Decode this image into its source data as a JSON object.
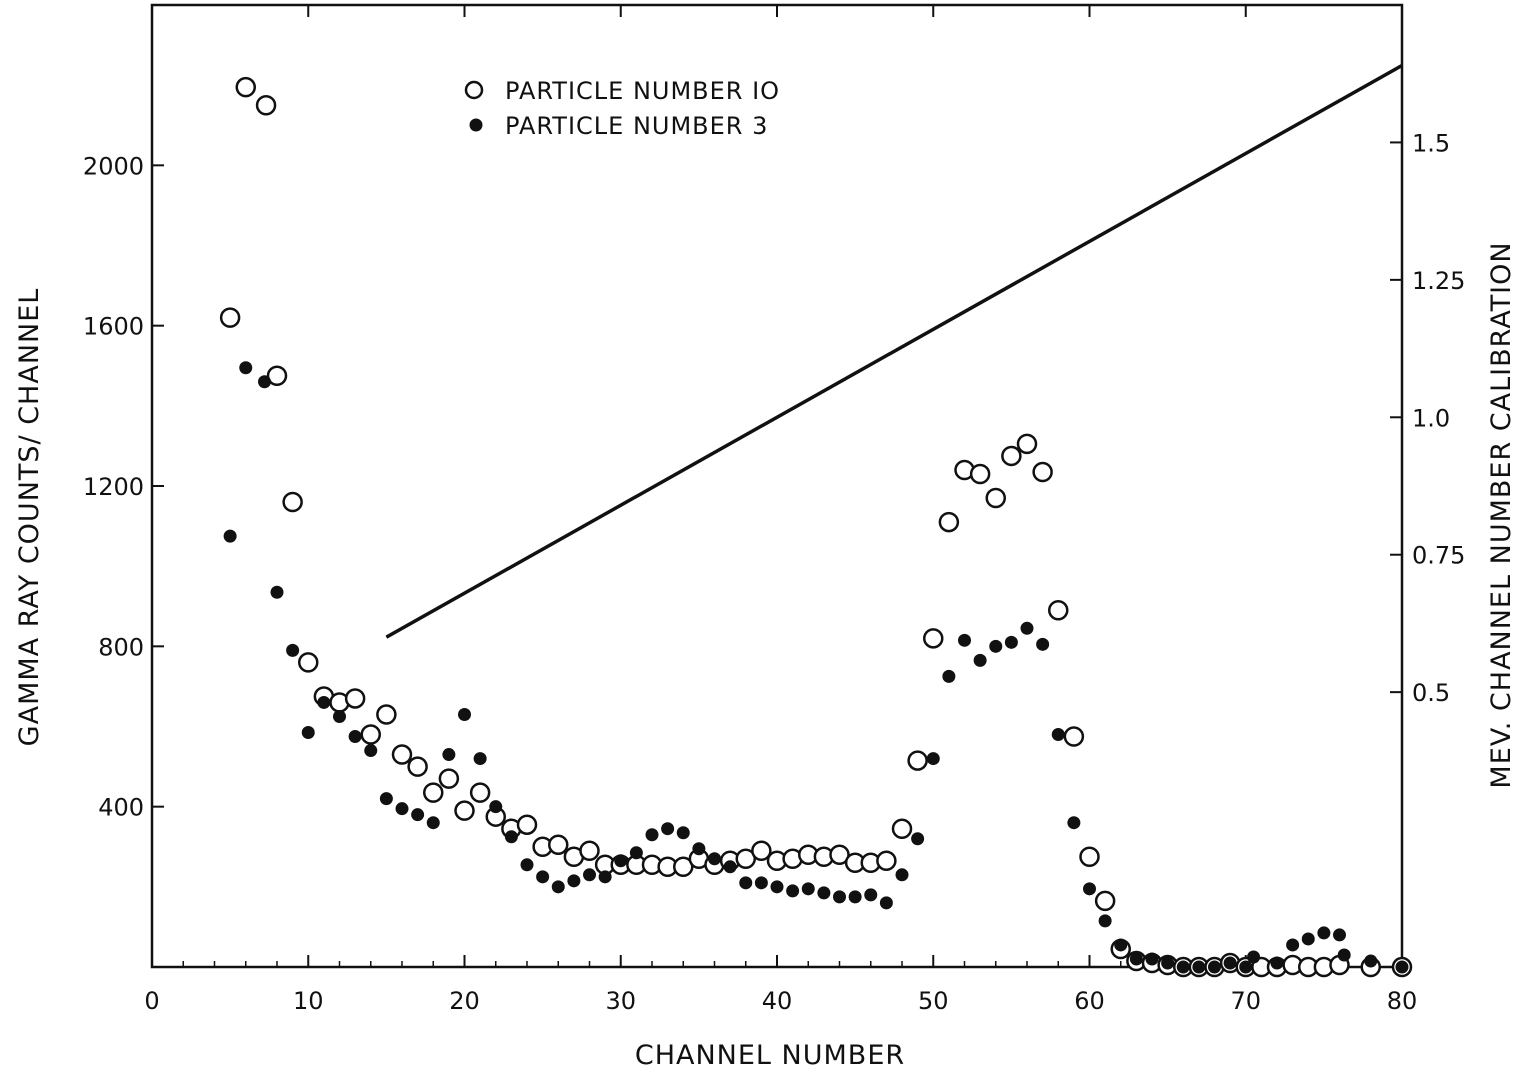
{
  "chart_data": {
    "type": "scatter",
    "xlabel": "CHANNEL NUMBER",
    "ylabel": "GAMMA RAY COUNTS/ CHANNEL",
    "y2label": "MEV. CHANNEL NUMBER CALIBRATION",
    "xlim": [
      0,
      80
    ],
    "ylim": [
      0,
      2400
    ],
    "y2lim": [
      0,
      1.75
    ],
    "x_ticks": [
      0,
      10,
      20,
      30,
      40,
      50,
      60,
      70,
      80
    ],
    "x_tick_labels": [
      "0",
      "10",
      "20",
      "30",
      "40",
      "50",
      "60",
      "70",
      "80"
    ],
    "y_ticks": [
      400,
      800,
      1200,
      1600,
      2000
    ],
    "y_tick_labels": [
      "400",
      "800",
      "1200",
      "1600",
      "2000"
    ],
    "y2_ticks": [
      0.5,
      0.75,
      1.0,
      1.25,
      1.5
    ],
    "y2_tick_labels": [
      "0.5",
      "0.75",
      "1.0",
      "1.25",
      "1.5"
    ],
    "grid": false,
    "legend_position": "top-left",
    "series": [
      {
        "name": "PARTICLE NUMBER 10",
        "marker": "open-circle",
        "points": [
          [
            5,
            1620
          ],
          [
            6,
            2195
          ],
          [
            7.3,
            2150
          ],
          [
            8,
            1475
          ],
          [
            9,
            1160
          ],
          [
            10,
            760
          ],
          [
            11,
            675
          ],
          [
            12,
            660
          ],
          [
            13,
            670
          ],
          [
            14,
            580
          ],
          [
            15,
            630
          ],
          [
            16,
            530
          ],
          [
            17,
            500
          ],
          [
            18,
            435
          ],
          [
            19,
            470
          ],
          [
            20,
            390
          ],
          [
            21,
            435
          ],
          [
            22,
            375
          ],
          [
            23,
            345
          ],
          [
            24,
            355
          ],
          [
            25,
            300
          ],
          [
            26,
            305
          ],
          [
            27,
            275
          ],
          [
            28,
            290
          ],
          [
            29,
            255
          ],
          [
            30,
            255
          ],
          [
            31,
            255
          ],
          [
            32,
            255
          ],
          [
            33,
            250
          ],
          [
            34,
            250
          ],
          [
            35,
            270
          ],
          [
            36,
            255
          ],
          [
            37,
            265
          ],
          [
            38,
            270
          ],
          [
            39,
            290
          ],
          [
            40,
            265
          ],
          [
            41,
            270
          ],
          [
            42,
            280
          ],
          [
            43,
            275
          ],
          [
            44,
            280
          ],
          [
            45,
            260
          ],
          [
            46,
            260
          ],
          [
            47,
            265
          ],
          [
            48,
            345
          ],
          [
            49,
            515
          ],
          [
            50,
            820
          ],
          [
            51,
            1110
          ],
          [
            52,
            1240
          ],
          [
            53,
            1230
          ],
          [
            54,
            1170
          ],
          [
            55,
            1275
          ],
          [
            56,
            1305
          ],
          [
            57,
            1235
          ],
          [
            58,
            890
          ],
          [
            59,
            575
          ],
          [
            60,
            275
          ],
          [
            61,
            165
          ],
          [
            62,
            45
          ],
          [
            63,
            15
          ],
          [
            64,
            10
          ],
          [
            65,
            5
          ],
          [
            66,
            0
          ],
          [
            67,
            0
          ],
          [
            68,
            0
          ],
          [
            69,
            10
          ],
          [
            70,
            0
          ],
          [
            71,
            0
          ],
          [
            72,
            0
          ],
          [
            73,
            5
          ],
          [
            74,
            0
          ],
          [
            75,
            0
          ],
          [
            76,
            5
          ],
          [
            78,
            0
          ],
          [
            80,
            0
          ]
        ]
      },
      {
        "name": "PARTICLE NUMBER 3",
        "marker": "filled-circle",
        "points": [
          [
            5,
            1075
          ],
          [
            6,
            1495
          ],
          [
            7.2,
            1460
          ],
          [
            8,
            935
          ],
          [
            9,
            790
          ],
          [
            10,
            585
          ],
          [
            11,
            660
          ],
          [
            12,
            625
          ],
          [
            13,
            575
          ],
          [
            14,
            540
          ],
          [
            15,
            420
          ],
          [
            16,
            395
          ],
          [
            17,
            380
          ],
          [
            18,
            360
          ],
          [
            19,
            530
          ],
          [
            20,
            630
          ],
          [
            21,
            520
          ],
          [
            22,
            400
          ],
          [
            23,
            325
          ],
          [
            24,
            255
          ],
          [
            25,
            225
          ],
          [
            26,
            200
          ],
          [
            27,
            215
          ],
          [
            28,
            230
          ],
          [
            29,
            225
          ],
          [
            30,
            265
          ],
          [
            31,
            285
          ],
          [
            32,
            330
          ],
          [
            33,
            345
          ],
          [
            34,
            335
          ],
          [
            35,
            295
          ],
          [
            36,
            270
          ],
          [
            37,
            250
          ],
          [
            38,
            210
          ],
          [
            39,
            210
          ],
          [
            40,
            200
          ],
          [
            41,
            190
          ],
          [
            42,
            195
          ],
          [
            43,
            185
          ],
          [
            44,
            175
          ],
          [
            45,
            175
          ],
          [
            46,
            180
          ],
          [
            47,
            160
          ],
          [
            48,
            230
          ],
          [
            49,
            320
          ],
          [
            50,
            520
          ],
          [
            51,
            725
          ],
          [
            52,
            815
          ],
          [
            53,
            765
          ],
          [
            54,
            800
          ],
          [
            55,
            810
          ],
          [
            56,
            845
          ],
          [
            57,
            805
          ],
          [
            58,
            580
          ],
          [
            59,
            360
          ],
          [
            60,
            195
          ],
          [
            61,
            115
          ],
          [
            62,
            55
          ],
          [
            63,
            20
          ],
          [
            64,
            20
          ],
          [
            65,
            10
          ],
          [
            66,
            0
          ],
          [
            67,
            0
          ],
          [
            68,
            0
          ],
          [
            69,
            10
          ],
          [
            70,
            0
          ],
          [
            70.5,
            25
          ],
          [
            72,
            10
          ],
          [
            73,
            55
          ],
          [
            74,
            70
          ],
          [
            75,
            85
          ],
          [
            76,
            80
          ],
          [
            76.3,
            30
          ],
          [
            78,
            15
          ],
          [
            80,
            0
          ]
        ]
      }
    ],
    "calibration_line": {
      "description_in_chart": "MEV. CHANNEL NUMBER CALIBRATION",
      "points_right_axis": [
        [
          15,
          0.6
        ],
        [
          80,
          1.64
        ]
      ]
    },
    "legend": [
      {
        "marker": "open-circle",
        "label": "PARTICLE NUMBER IO"
      },
      {
        "marker": "filled-circle",
        "label": "PARTICLE NUMBER 3"
      }
    ]
  }
}
